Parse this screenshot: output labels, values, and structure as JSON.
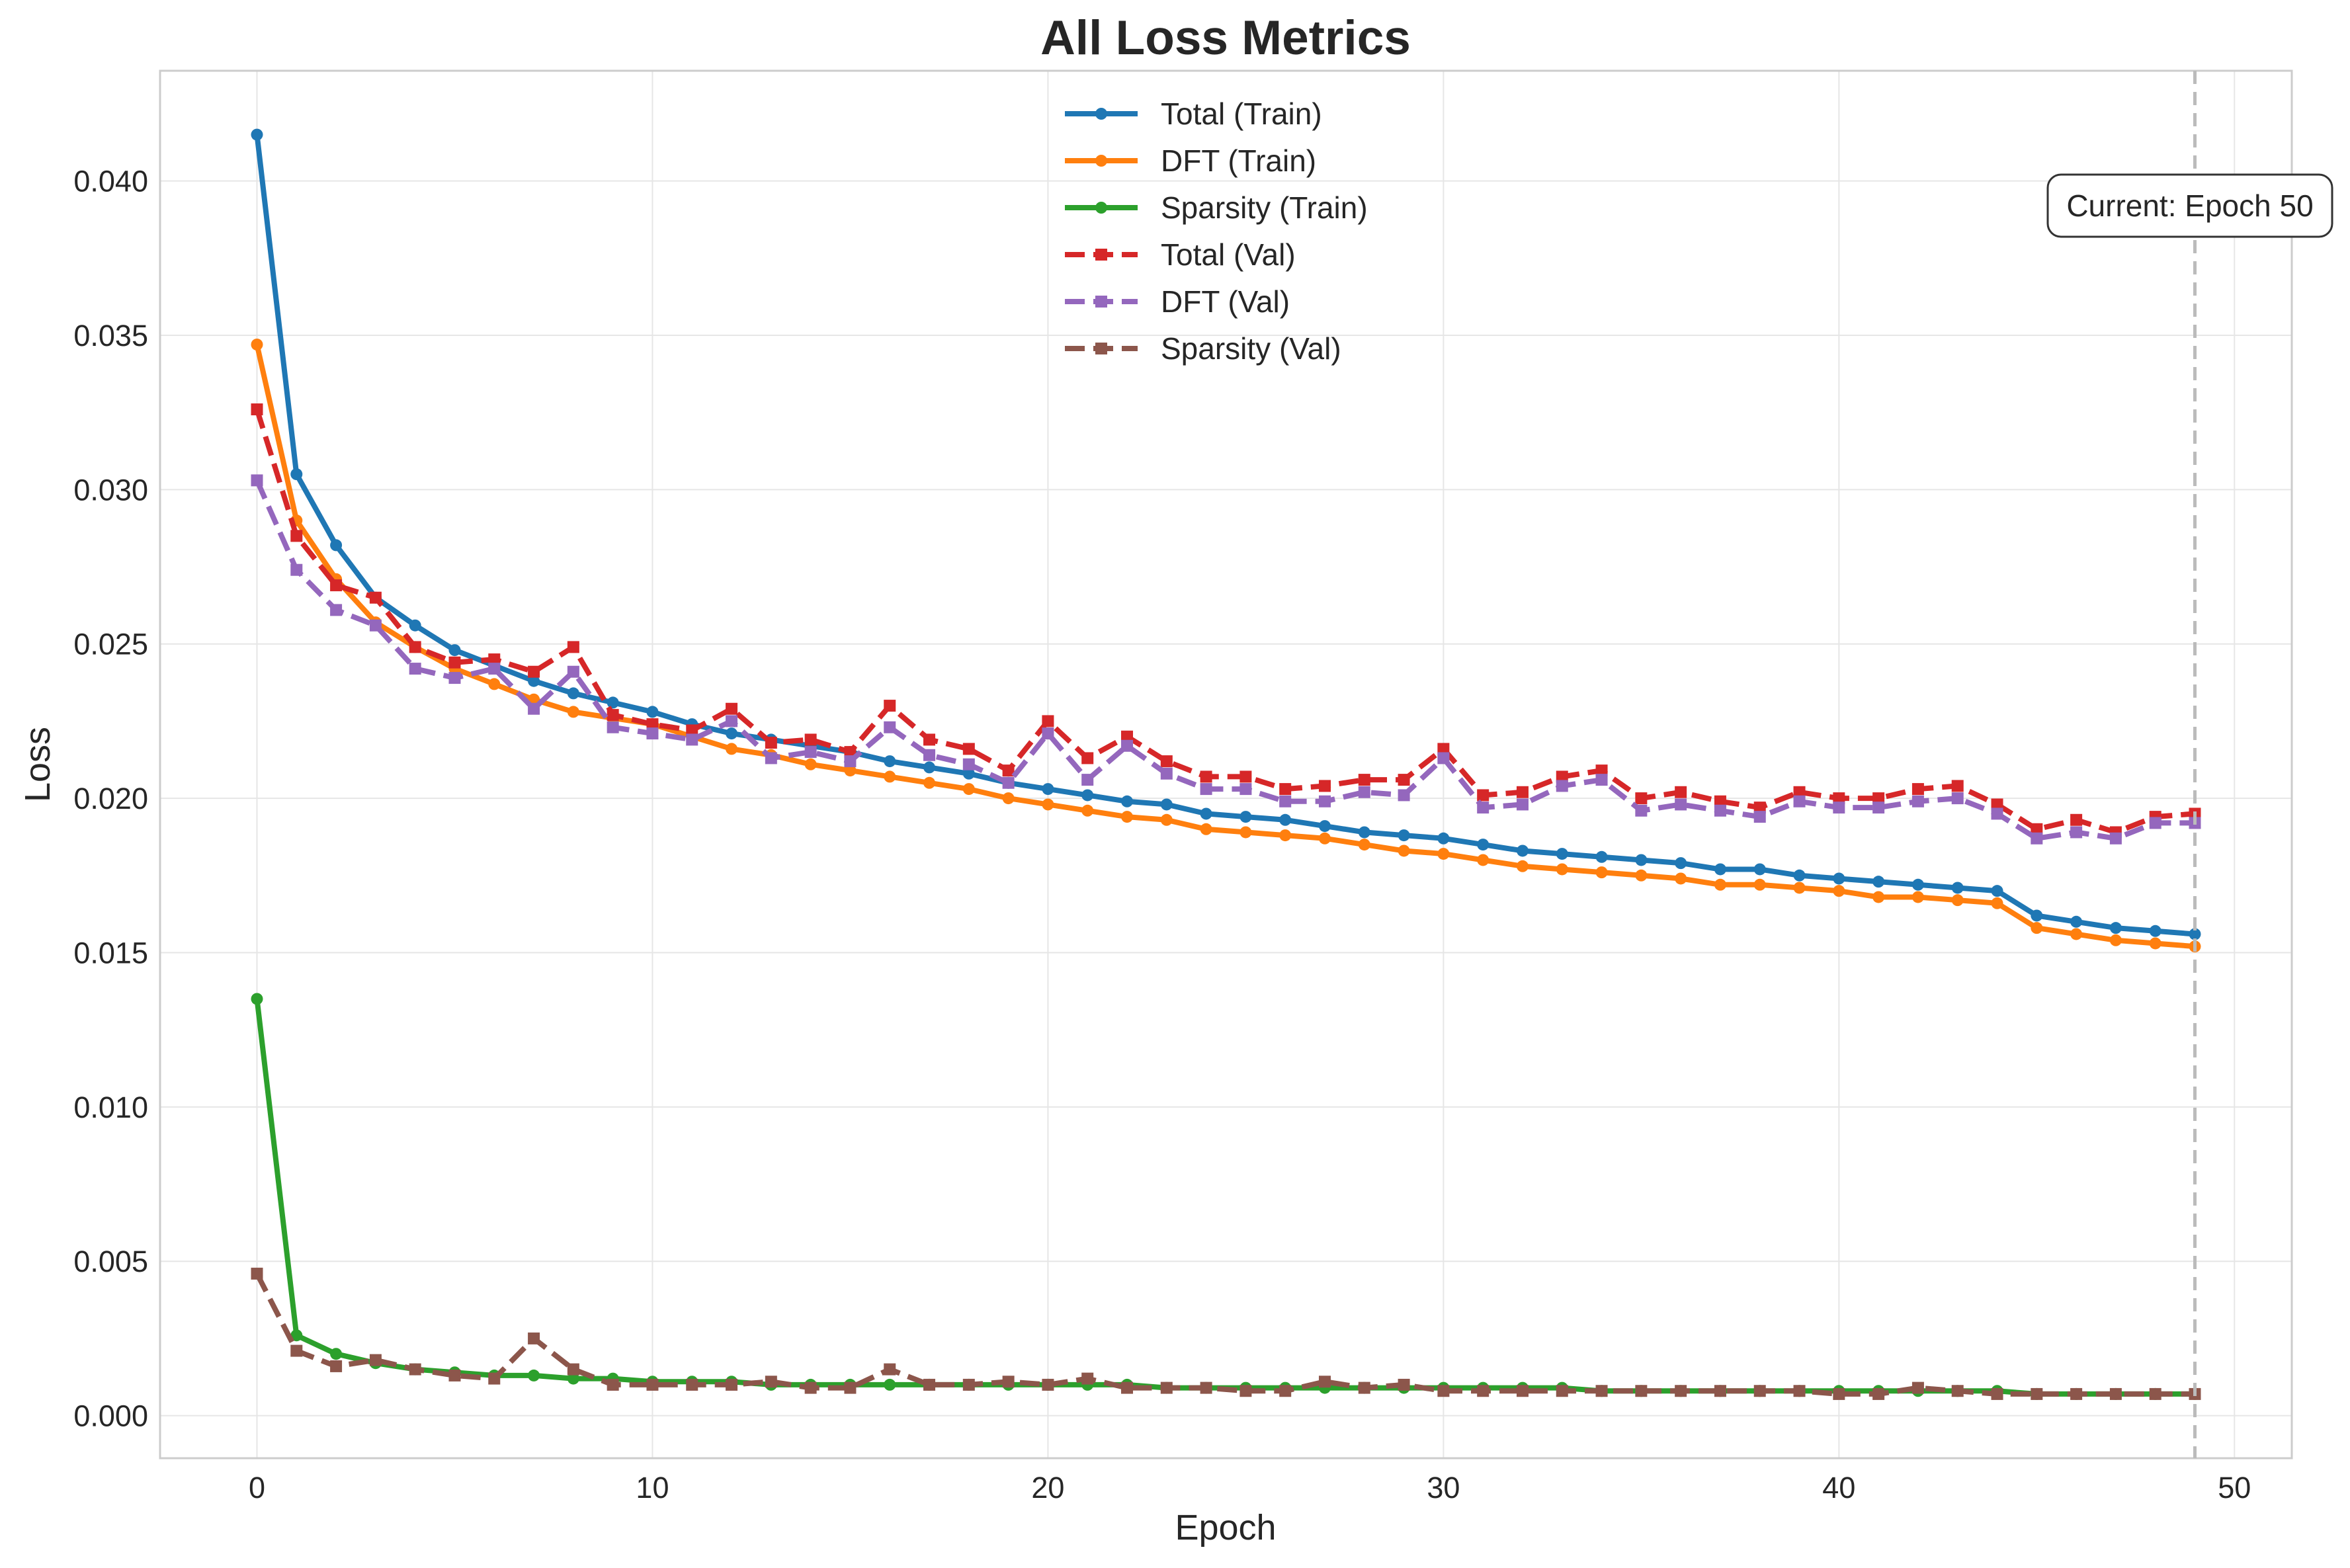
{
  "chart_data": {
    "type": "line",
    "title": "All Loss Metrics",
    "xlabel": "Epoch",
    "ylabel": "Loss",
    "xlim": [
      -2.45,
      51.45
    ],
    "ylim": [
      -0.00138,
      0.04357
    ],
    "xticks": [
      0,
      10,
      20,
      30,
      40,
      50
    ],
    "yticks": [
      0.0,
      0.005,
      0.01,
      0.015,
      0.02,
      0.025,
      0.03,
      0.035,
      0.04
    ],
    "ytick_labels": [
      "0.000",
      "0.005",
      "0.010",
      "0.015",
      "0.020",
      "0.025",
      "0.030",
      "0.035",
      "0.040"
    ],
    "grid": true,
    "legend_position": "top-center",
    "x": [
      0,
      1,
      2,
      3,
      4,
      5,
      6,
      7,
      8,
      9,
      10,
      11,
      12,
      13,
      14,
      15,
      16,
      17,
      18,
      19,
      20,
      21,
      22,
      23,
      24,
      25,
      26,
      27,
      28,
      29,
      30,
      31,
      32,
      33,
      34,
      35,
      36,
      37,
      38,
      39,
      40,
      41,
      42,
      43,
      44,
      45,
      46,
      47,
      48,
      49
    ],
    "series": [
      {
        "name": "Total (Train)",
        "color": "#1f77b4",
        "style": "solid",
        "marker": "circle",
        "values": [
          0.0415,
          0.0305,
          0.0282,
          0.0265,
          0.0256,
          0.0248,
          0.0243,
          0.0238,
          0.0234,
          0.0231,
          0.0228,
          0.0224,
          0.0221,
          0.0219,
          0.0217,
          0.0215,
          0.0212,
          0.021,
          0.0208,
          0.0205,
          0.0203,
          0.0201,
          0.0199,
          0.0198,
          0.0195,
          0.0194,
          0.0193,
          0.0191,
          0.0189,
          0.0188,
          0.0187,
          0.0185,
          0.0183,
          0.0182,
          0.0181,
          0.018,
          0.0179,
          0.0177,
          0.0177,
          0.0175,
          0.0174,
          0.0173,
          0.0172,
          0.0171,
          0.017,
          0.0162,
          0.016,
          0.0158,
          0.0157,
          0.0156
        ]
      },
      {
        "name": "DFT (Train)",
        "color": "#ff7f0e",
        "style": "solid",
        "marker": "circle",
        "values": [
          0.0347,
          0.029,
          0.0271,
          0.0257,
          0.0249,
          0.0242,
          0.0237,
          0.0232,
          0.0228,
          0.0226,
          0.0224,
          0.022,
          0.0216,
          0.0214,
          0.0211,
          0.0209,
          0.0207,
          0.0205,
          0.0203,
          0.02,
          0.0198,
          0.0196,
          0.0194,
          0.0193,
          0.019,
          0.0189,
          0.0188,
          0.0187,
          0.0185,
          0.0183,
          0.0182,
          0.018,
          0.0178,
          0.0177,
          0.0176,
          0.0175,
          0.0174,
          0.0172,
          0.0172,
          0.0171,
          0.017,
          0.0168,
          0.0168,
          0.0167,
          0.0166,
          0.0158,
          0.0156,
          0.0154,
          0.0153,
          0.0152
        ]
      },
      {
        "name": "Sparsity (Train)",
        "color": "#2ca02c",
        "style": "solid",
        "marker": "circle",
        "values": [
          0.0135,
          0.0026,
          0.002,
          0.0017,
          0.0015,
          0.0014,
          0.0013,
          0.0013,
          0.0012,
          0.0012,
          0.0011,
          0.0011,
          0.0011,
          0.001,
          0.001,
          0.001,
          0.001,
          0.001,
          0.001,
          0.001,
          0.001,
          0.001,
          0.001,
          0.0009,
          0.0009,
          0.0009,
          0.0009,
          0.0009,
          0.0009,
          0.0009,
          0.0009,
          0.0009,
          0.0009,
          0.0009,
          0.0008,
          0.0008,
          0.0008,
          0.0008,
          0.0008,
          0.0008,
          0.0008,
          0.0008,
          0.0008,
          0.0008,
          0.0008,
          0.0007,
          0.0007,
          0.0007,
          0.0007,
          0.0007
        ]
      },
      {
        "name": "Total (Val)",
        "color": "#d62728",
        "style": "dashed",
        "marker": "square",
        "values": [
          0.0326,
          0.0285,
          0.0269,
          0.0265,
          0.0249,
          0.0244,
          0.0245,
          0.0241,
          0.0249,
          0.0227,
          0.0224,
          0.0222,
          0.0229,
          0.0218,
          0.0219,
          0.0215,
          0.023,
          0.0219,
          0.0216,
          0.0209,
          0.0225,
          0.0213,
          0.022,
          0.0212,
          0.0207,
          0.0207,
          0.0203,
          0.0204,
          0.0206,
          0.0206,
          0.0216,
          0.0201,
          0.0202,
          0.0207,
          0.0209,
          0.02,
          0.0202,
          0.0199,
          0.0197,
          0.0202,
          0.02,
          0.02,
          0.0203,
          0.0204,
          0.0198,
          0.019,
          0.0193,
          0.0189,
          0.0194,
          0.0195
        ]
      },
      {
        "name": "DFT (Val)",
        "color": "#9467bd",
        "style": "dashed",
        "marker": "square",
        "values": [
          0.0303,
          0.0274,
          0.0261,
          0.0256,
          0.0242,
          0.0239,
          0.0242,
          0.0229,
          0.0241,
          0.0223,
          0.0221,
          0.0219,
          0.0225,
          0.0213,
          0.0215,
          0.0212,
          0.0223,
          0.0214,
          0.0211,
          0.0205,
          0.0221,
          0.0206,
          0.0217,
          0.0208,
          0.0203,
          0.0203,
          0.0199,
          0.0199,
          0.0202,
          0.0201,
          0.0213,
          0.0197,
          0.0198,
          0.0204,
          0.0206,
          0.0196,
          0.0198,
          0.0196,
          0.0194,
          0.0199,
          0.0197,
          0.0197,
          0.0199,
          0.02,
          0.0195,
          0.0187,
          0.0189,
          0.0187,
          0.0192,
          0.0192
        ]
      },
      {
        "name": "Sparsity (Val)",
        "color": "#8c564b",
        "style": "dashed",
        "marker": "square",
        "values": [
          0.0046,
          0.0021,
          0.0016,
          0.0018,
          0.0015,
          0.0013,
          0.0012,
          0.0025,
          0.0015,
          0.001,
          0.001,
          0.001,
          0.001,
          0.0011,
          0.0009,
          0.0009,
          0.0015,
          0.001,
          0.001,
          0.0011,
          0.001,
          0.0012,
          0.0009,
          0.0009,
          0.0009,
          0.0008,
          0.0008,
          0.0011,
          0.0009,
          0.001,
          0.0008,
          0.0008,
          0.0008,
          0.0008,
          0.0008,
          0.0008,
          0.0008,
          0.0008,
          0.0008,
          0.0008,
          0.0007,
          0.0007,
          0.0009,
          0.0008,
          0.0007,
          0.0007,
          0.0007,
          0.0007,
          0.0007,
          0.0007
        ]
      }
    ],
    "vline": {
      "x": 49,
      "color": "#bbbbbb",
      "style": "dashed"
    },
    "annotation": {
      "text": "Current: Epoch 50",
      "position": "top-right"
    }
  }
}
